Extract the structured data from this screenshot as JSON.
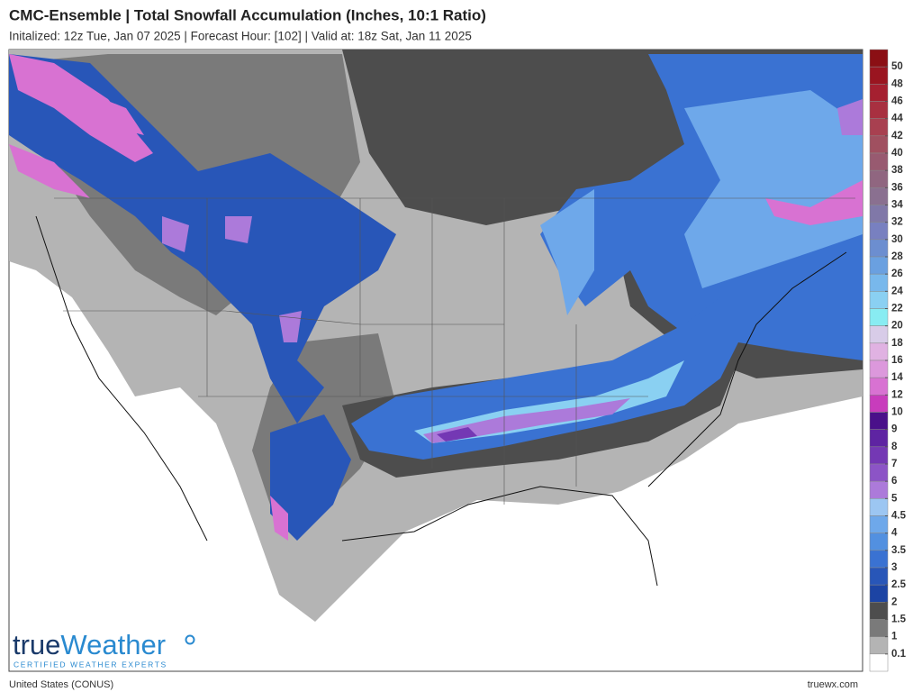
{
  "header": {
    "title": "CMC-Ensemble | Total Snowfall Accumulation (Inches, 10:1 Ratio)",
    "subtitle": "Initalized: 12z Tue, Jan 07 2025 | Forecast Hour: [102] | Valid at: 18z Sat, Jan 11 2025"
  },
  "legend": {
    "levels": [
      50,
      48,
      46,
      44,
      42,
      40,
      38,
      36,
      34,
      32,
      30,
      28,
      26,
      24,
      22,
      20,
      18,
      16,
      14,
      12,
      10,
      9,
      8,
      7,
      6,
      5,
      4.5,
      4,
      3.5,
      3,
      2.5,
      2,
      1.5,
      1,
      0.1
    ],
    "colors": [
      "#8b0f14",
      "#9a1520",
      "#a52030",
      "#a83040",
      "#a84050",
      "#a05060",
      "#985a70",
      "#906680",
      "#8a7090",
      "#8078a8",
      "#7880c0",
      "#6c8ed0",
      "#6aa0e0",
      "#78b8ec",
      "#8ad0f2",
      "#88ecf2",
      "#d8cce8",
      "#e0b2e2",
      "#dc98dc",
      "#d872d2",
      "#c83cbc",
      "#4a108a",
      "#5e24a2",
      "#7438b4",
      "#8c54c6",
      "#ac7ada",
      "#9cc6f2",
      "#6ea8ea",
      "#5290e0",
      "#3a72d2",
      "#2856b8",
      "#1c44a4",
      "#4d4d4d",
      "#7a7a7a",
      "#b4b4b4",
      "#ffffff"
    ]
  },
  "logo": {
    "name_a": "true",
    "name_b": "Weather",
    "tagline": "CERTIFIED WEATHER EXPERTS"
  },
  "footer": {
    "region": "United States (CONUS)",
    "site": "truewx.com"
  }
}
